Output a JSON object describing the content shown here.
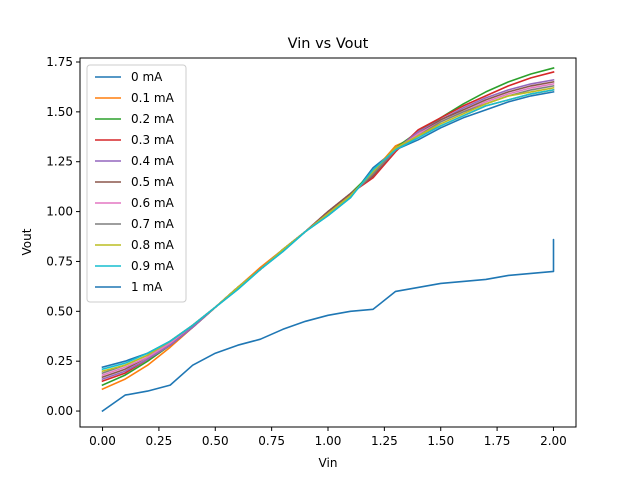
{
  "chart_data": {
    "type": "line",
    "title": "Vin vs Vout",
    "xlabel": "Vin",
    "ylabel": "Vout",
    "xlim": [
      -0.1,
      2.1
    ],
    "ylim": [
      -0.08,
      1.77
    ],
    "xticks": [
      "0.00",
      "0.25",
      "0.50",
      "0.75",
      "1.00",
      "1.25",
      "1.50",
      "1.75",
      "2.00"
    ],
    "yticks": [
      "0.00",
      "0.25",
      "0.50",
      "0.75",
      "1.00",
      "1.25",
      "1.50",
      "1.75"
    ],
    "legend_position": "top-left",
    "x": [
      0.0,
      0.1,
      0.2,
      0.3,
      0.4,
      0.5,
      0.6,
      0.7,
      0.8,
      0.9,
      1.0,
      1.1,
      1.2,
      1.3,
      1.4,
      1.5,
      1.6,
      1.7,
      1.8,
      1.9,
      2.0
    ],
    "series": [
      {
        "name": "0 mA",
        "color": "#1f77b4",
        "values": [
          0.22,
          0.25,
          0.29,
          0.35,
          0.43,
          0.52,
          0.61,
          0.71,
          0.8,
          0.9,
          0.98,
          1.07,
          1.22,
          1.31,
          1.36,
          1.42,
          1.47,
          1.51,
          1.55,
          1.58,
          1.6
        ]
      },
      {
        "name": "0.1 mA",
        "color": "#ff7f0e",
        "values": [
          0.11,
          0.16,
          0.23,
          0.32,
          0.42,
          0.52,
          0.62,
          0.72,
          0.81,
          0.9,
          0.99,
          1.08,
          1.2,
          1.33,
          1.38,
          1.43,
          1.48,
          1.53,
          1.56,
          1.59,
          1.61
        ]
      },
      {
        "name": "0.2 mA",
        "color": "#2ca02c",
        "values": [
          0.13,
          0.18,
          0.25,
          0.33,
          0.42,
          0.52,
          0.62,
          0.71,
          0.81,
          0.9,
          1.0,
          1.09,
          1.2,
          1.32,
          1.4,
          1.47,
          1.54,
          1.6,
          1.65,
          1.69,
          1.72
        ]
      },
      {
        "name": "0.3 mA",
        "color": "#d62728",
        "values": [
          0.15,
          0.19,
          0.26,
          0.33,
          0.42,
          0.52,
          0.62,
          0.71,
          0.81,
          0.9,
          1.0,
          1.09,
          1.17,
          1.3,
          1.41,
          1.47,
          1.53,
          1.58,
          1.63,
          1.67,
          1.7
        ]
      },
      {
        "name": "0.4 mA",
        "color": "#9467bd",
        "values": [
          0.16,
          0.2,
          0.26,
          0.33,
          0.42,
          0.52,
          0.62,
          0.71,
          0.81,
          0.9,
          1.0,
          1.09,
          1.18,
          1.31,
          1.4,
          1.46,
          1.52,
          1.57,
          1.61,
          1.64,
          1.66
        ]
      },
      {
        "name": "0.5 mA",
        "color": "#8c564b",
        "values": [
          0.17,
          0.21,
          0.27,
          0.34,
          0.43,
          0.52,
          0.62,
          0.71,
          0.81,
          0.9,
          1.0,
          1.09,
          1.18,
          1.31,
          1.39,
          1.46,
          1.51,
          1.56,
          1.6,
          1.63,
          1.65
        ]
      },
      {
        "name": "0.6 mA",
        "color": "#e377c2",
        "values": [
          0.18,
          0.22,
          0.27,
          0.34,
          0.43,
          0.52,
          0.62,
          0.71,
          0.81,
          0.9,
          0.99,
          1.08,
          1.19,
          1.31,
          1.39,
          1.45,
          1.5,
          1.55,
          1.59,
          1.62,
          1.64
        ]
      },
      {
        "name": "0.7 mA",
        "color": "#7f7f7f",
        "values": [
          0.19,
          0.23,
          0.28,
          0.35,
          0.43,
          0.52,
          0.62,
          0.71,
          0.81,
          0.9,
          0.99,
          1.08,
          1.19,
          1.31,
          1.38,
          1.45,
          1.5,
          1.54,
          1.58,
          1.61,
          1.63
        ]
      },
      {
        "name": "0.8 mA",
        "color": "#bcbd22",
        "values": [
          0.2,
          0.23,
          0.28,
          0.35,
          0.43,
          0.52,
          0.62,
          0.71,
          0.81,
          0.9,
          0.99,
          1.08,
          1.2,
          1.32,
          1.38,
          1.44,
          1.49,
          1.54,
          1.58,
          1.6,
          1.62
        ]
      },
      {
        "name": "0.9 mA",
        "color": "#17becf",
        "values": [
          0.21,
          0.24,
          0.29,
          0.35,
          0.43,
          0.52,
          0.61,
          0.71,
          0.8,
          0.9,
          0.98,
          1.07,
          1.21,
          1.31,
          1.37,
          1.43,
          1.48,
          1.53,
          1.56,
          1.59,
          1.61
        ]
      },
      {
        "name": "1 mA",
        "color": "#1f77b4",
        "points": [
          [
            0.0,
            0.0
          ],
          [
            0.1,
            0.08
          ],
          [
            0.2,
            0.1
          ],
          [
            0.3,
            0.13
          ],
          [
            0.4,
            0.23
          ],
          [
            0.5,
            0.29
          ],
          [
            0.6,
            0.33
          ],
          [
            0.7,
            0.36
          ],
          [
            0.8,
            0.41
          ],
          [
            0.9,
            0.45
          ],
          [
            1.0,
            0.48
          ],
          [
            1.1,
            0.5
          ],
          [
            1.2,
            0.51
          ],
          [
            1.3,
            0.6
          ],
          [
            1.4,
            0.62
          ],
          [
            1.5,
            0.64
          ],
          [
            1.6,
            0.65
          ],
          [
            1.7,
            0.66
          ],
          [
            1.8,
            0.68
          ],
          [
            1.9,
            0.69
          ],
          [
            2.0,
            0.7
          ],
          [
            2.0,
            0.86
          ],
          [
            2.0,
            0.83
          ]
        ]
      }
    ]
  }
}
